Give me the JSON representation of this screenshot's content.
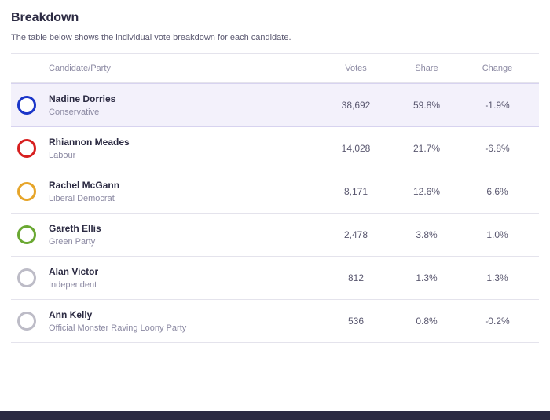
{
  "title": "Breakdown",
  "subtitle": "The table below shows the individual vote breakdown for each candidate.",
  "headers": {
    "candidate": "Candidate/Party",
    "votes": "Votes",
    "share": "Share",
    "change": "Change"
  },
  "highlight_row_index": 0,
  "candidates": [
    {
      "name": "Nadine Dorries",
      "party": "Conservative",
      "votes": "38,692",
      "share": "59.8%",
      "change": "-1.9%",
      "circle_color": "#1b36c9"
    },
    {
      "name": "Rhiannon Meades",
      "party": "Labour",
      "votes": "14,028",
      "share": "21.7%",
      "change": "-6.8%",
      "circle_color": "#d71f1f"
    },
    {
      "name": "Rachel McGann",
      "party": "Liberal Democrat",
      "votes": "8,171",
      "share": "12.6%",
      "change": "6.6%",
      "circle_color": "#e6a52a"
    },
    {
      "name": "Gareth Ellis",
      "party": "Green Party",
      "votes": "2,478",
      "share": "3.8%",
      "change": "1.0%",
      "circle_color": "#6aa832"
    },
    {
      "name": "Alan Victor",
      "party": "Independent",
      "votes": "812",
      "share": "1.3%",
      "change": "1.3%",
      "circle_color": "#bdbcc7"
    },
    {
      "name": "Ann Kelly",
      "party": "Official Monster Raving Loony Party",
      "votes": "536",
      "share": "0.8%",
      "change": "-0.2%",
      "circle_color": "#bdbcc7"
    }
  ],
  "styling": {
    "background": "#ffffff",
    "highlight_bg": "#f3f1fb",
    "border_color": "#e4e3ec",
    "text_primary": "#2b2a42",
    "text_secondary": "#8c8aa3",
    "footer_bg": "#2b2a42"
  }
}
